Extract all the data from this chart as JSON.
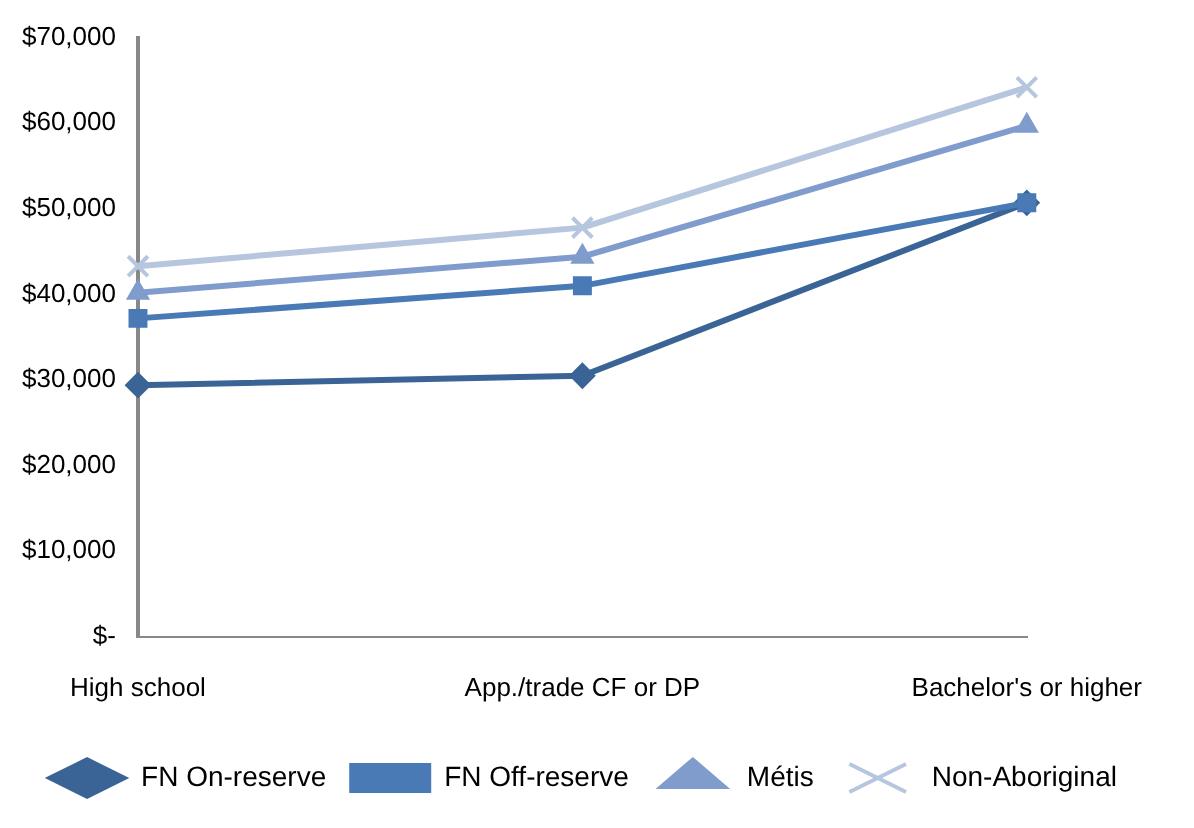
{
  "chart_data": {
    "type": "line",
    "categories": [
      "High school",
      "App./trade CF or DP",
      "Bachelor's or higher"
    ],
    "series": [
      {
        "name": "FN On-reserve",
        "color": "#3b6496",
        "marker": "diamond",
        "values": [
          29400,
          30500,
          50700
        ]
      },
      {
        "name": "FN Off-reserve",
        "color": "#4a7ab5",
        "marker": "square",
        "values": [
          37200,
          41000,
          50700
        ]
      },
      {
        "name": "Métis",
        "color": "#7f9ccc",
        "marker": "triangle",
        "values": [
          40200,
          44400,
          59700
        ]
      },
      {
        "name": "Non-Aboriginal",
        "color": "#b7c6df",
        "marker": "cross",
        "values": [
          43300,
          47800,
          64200
        ]
      }
    ],
    "ylim": [
      0,
      70000
    ],
    "yticks": [
      {
        "value": 0,
        "label": "$-"
      },
      {
        "value": 10000,
        "label": "$10,000"
      },
      {
        "value": 20000,
        "label": "$20,000"
      },
      {
        "value": 30000,
        "label": "$30,000"
      },
      {
        "value": 40000,
        "label": "$40,000"
      },
      {
        "value": 50000,
        "label": "$50,000"
      },
      {
        "value": 60000,
        "label": "$60,000"
      },
      {
        "value": 70000,
        "label": "$70,000"
      }
    ],
    "grid": false,
    "legend": "bottom",
    "line_style": "solid"
  }
}
